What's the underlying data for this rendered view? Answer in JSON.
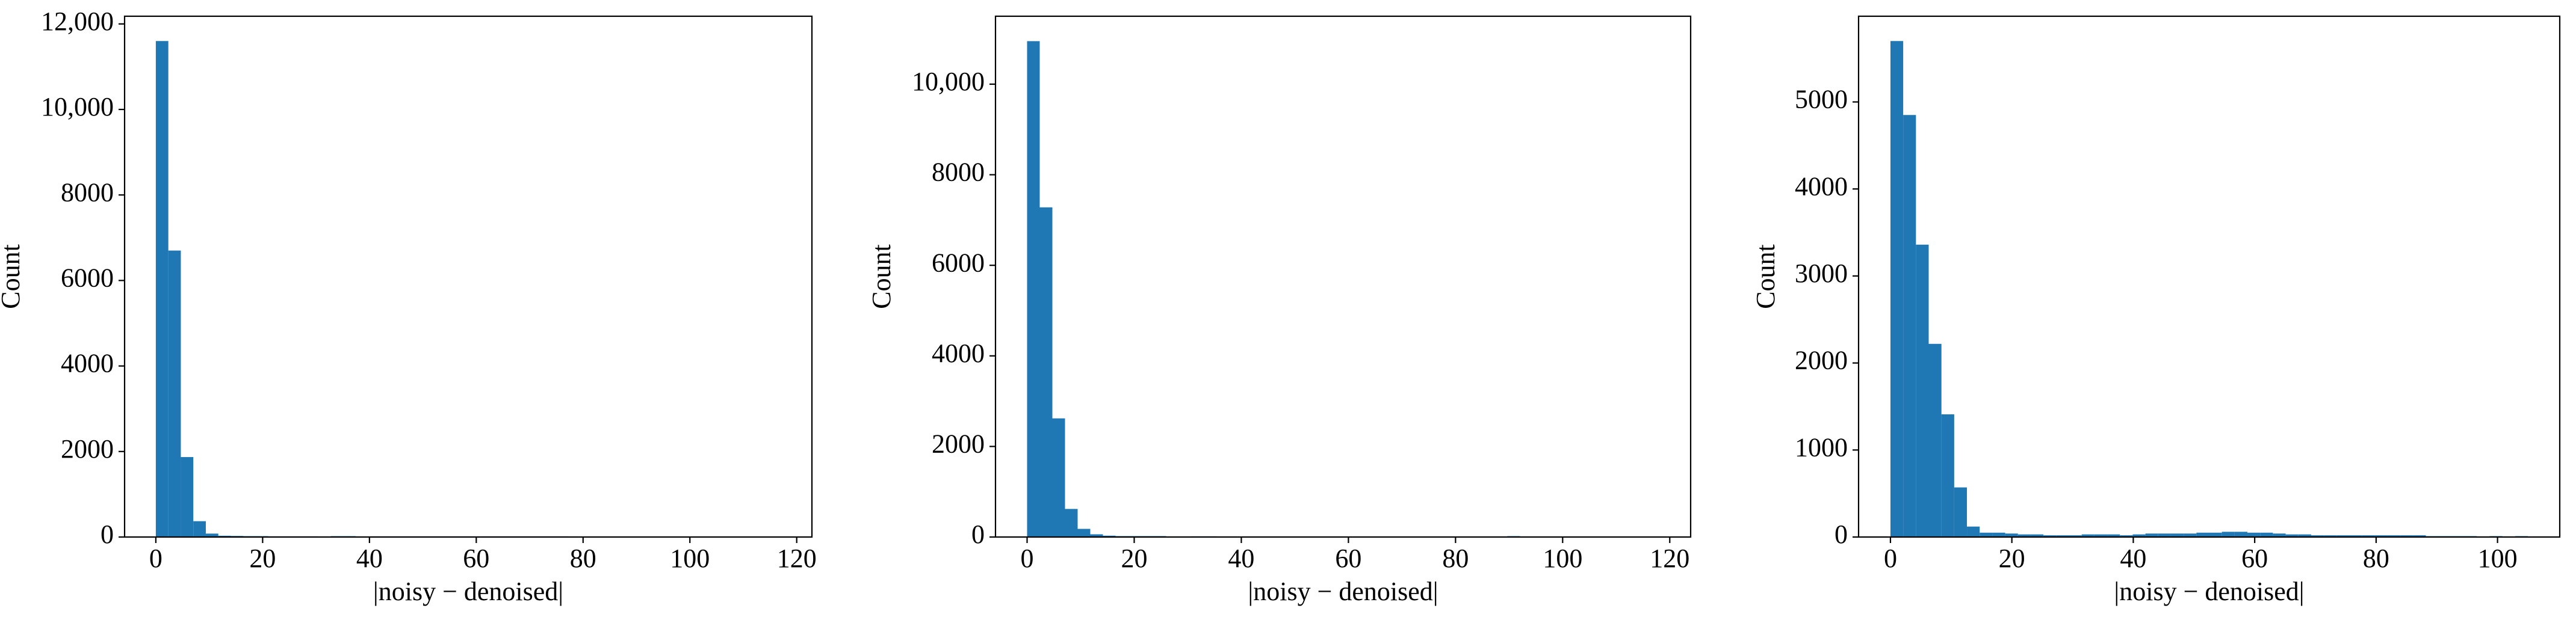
{
  "chart_data": [
    {
      "type": "histogram",
      "color": "#1f77b4",
      "xlabel": "|noisy − denoised|",
      "ylabel": "Count",
      "bins": [
        0,
        2.34,
        4.68,
        7.02,
        9.36,
        11.7,
        14.04,
        16.38,
        18.72,
        21.06,
        23.4,
        25.74,
        28.08,
        30.42,
        32.76,
        35.1,
        37.44,
        39.78,
        42.12,
        44.46,
        46.8,
        49.14,
        51.48,
        53.82,
        56.16,
        58.5,
        60.84,
        63.18,
        65.52,
        67.86,
        70.2,
        72.54,
        74.88,
        77.22,
        79.56,
        81.9,
        84.24,
        86.58,
        88.92,
        91.26,
        93.6,
        95.94,
        98.28,
        100.62,
        102.96,
        105.3,
        107.64,
        109.98,
        112.32,
        114.66,
        117
      ],
      "counts": [
        11600,
        6700,
        1870,
        370,
        80,
        30,
        25,
        20,
        20,
        15,
        15,
        15,
        15,
        0,
        20,
        20,
        0,
        15,
        15,
        15,
        15,
        15,
        15,
        15,
        15,
        15,
        15,
        15,
        15,
        15,
        15,
        15,
        15,
        0,
        0,
        0,
        0,
        0,
        0,
        0,
        0,
        0,
        0,
        0,
        0,
        0,
        0,
        0,
        0,
        5
      ],
      "xlim": [
        -5.85,
        122.85
      ],
      "xticks": [
        0,
        20,
        40,
        60,
        80,
        100,
        120
      ],
      "ylim": [
        0,
        12180
      ],
      "yticks": [
        0,
        2000,
        4000,
        6000,
        8000,
        {
          "value": 10000,
          "label": "10,000"
        },
        {
          "value": 12000,
          "label": "12,000"
        }
      ]
    },
    {
      "type": "histogram",
      "color": "#1f77b4",
      "xlabel": "|noisy − denoised|",
      "ylabel": "Count",
      "bins": [
        0,
        2.36,
        4.72,
        7.08,
        9.44,
        11.8,
        14.16,
        16.52,
        18.88,
        21.24,
        23.6,
        25.96,
        28.32,
        30.68,
        33.04,
        35.4,
        37.76,
        40.12,
        42.48,
        44.84,
        47.2,
        49.56,
        51.92,
        54.28,
        56.64,
        59,
        61.36,
        63.72,
        66.08,
        68.44,
        70.8,
        73.16,
        75.52,
        77.88,
        80.24,
        82.6,
        84.96,
        87.32,
        89.68,
        92.04,
        94.4,
        96.76,
        99.12,
        101.48,
        103.84,
        106.2,
        108.56,
        110.92,
        113.28,
        115.64,
        118
      ],
      "counts": [
        10950,
        7280,
        2620,
        620,
        180,
        60,
        30,
        20,
        20,
        20,
        20,
        5,
        0,
        15,
        15,
        0,
        5,
        10,
        10,
        10,
        10,
        10,
        10,
        10,
        10,
        10,
        10,
        10,
        10,
        10,
        10,
        10,
        10,
        10,
        10,
        0,
        0,
        0,
        20,
        0,
        0,
        0,
        0,
        0,
        0,
        0,
        0,
        0,
        0,
        5
      ],
      "xlim": [
        -5.9,
        123.9
      ],
      "xticks": [
        0,
        20,
        40,
        60,
        80,
        100,
        120
      ],
      "ylim": [
        0,
        11500
      ],
      "yticks": [
        0,
        2000,
        4000,
        6000,
        8000,
        {
          "value": 10000,
          "label": "10,000"
        }
      ]
    },
    {
      "type": "histogram",
      "color": "#1f77b4",
      "xlabel": "|noisy − denoised|",
      "ylabel": "Count",
      "bins": [
        0,
        2.1,
        4.2,
        6.3,
        8.4,
        10.5,
        12.6,
        14.7,
        16.8,
        18.9,
        21,
        23.1,
        25.2,
        27.3,
        29.4,
        31.5,
        33.6,
        35.7,
        37.8,
        39.9,
        42,
        44.1,
        46.2,
        48.3,
        50.4,
        52.5,
        54.6,
        56.7,
        58.8,
        60.9,
        63,
        65.1,
        67.2,
        69.3,
        71.4,
        73.5,
        75.6,
        77.7,
        79.8,
        81.9,
        84,
        86.1,
        88.2,
        90.3,
        92.4,
        94.5,
        96.6,
        98.7,
        100.8,
        102.9,
        105
      ],
      "counts": [
        5700,
        4850,
        3360,
        2220,
        1410,
        570,
        120,
        50,
        50,
        40,
        30,
        30,
        20,
        20,
        20,
        30,
        30,
        30,
        20,
        30,
        40,
        40,
        40,
        40,
        50,
        50,
        60,
        60,
        50,
        50,
        40,
        30,
        30,
        20,
        20,
        20,
        20,
        20,
        20,
        20,
        20,
        20,
        10,
        10,
        10,
        10,
        0,
        10,
        0,
        10
      ],
      "xlim": [
        -5.25,
        110.25
      ],
      "xticks": [
        0,
        20,
        40,
        60,
        80,
        100
      ],
      "ylim": [
        0,
        5985
      ],
      "yticks": [
        0,
        1000,
        2000,
        3000,
        4000,
        5000
      ]
    }
  ]
}
